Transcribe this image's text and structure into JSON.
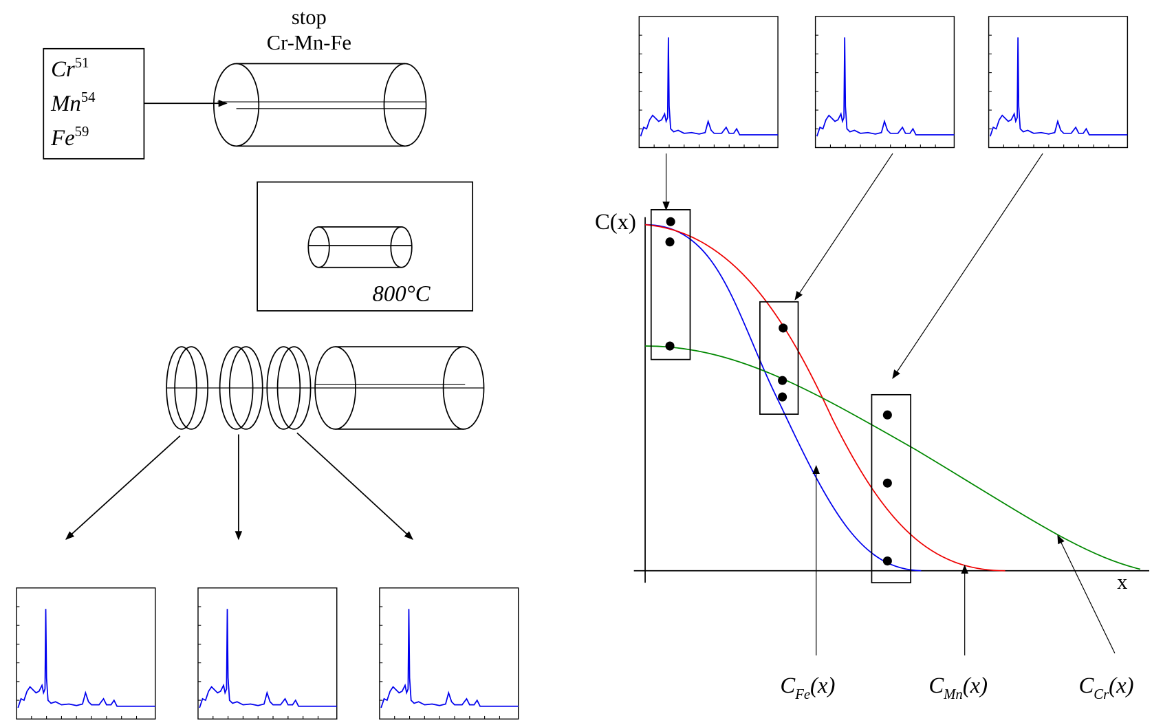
{
  "source": {
    "isotopes": [
      {
        "symbol": "Cr",
        "mass": "51"
      },
      {
        "symbol": "Mn",
        "mass": "54"
      },
      {
        "symbol": "Fe",
        "mass": "59"
      }
    ]
  },
  "stopper": {
    "line1": "stop",
    "line2": "Cr-Mn-Fe"
  },
  "furnace": {
    "temperature": "800°C"
  },
  "plot": {
    "y_label": "C(x)",
    "x_label": "x",
    "curves": [
      {
        "symbol": "C",
        "subscript": "Fe",
        "argument": "(x)"
      },
      {
        "symbol": "C",
        "subscript": "Mn",
        "argument": "(x)"
      },
      {
        "symbol": "C",
        "subscript": "Cr",
        "argument": "(x)"
      }
    ]
  }
}
